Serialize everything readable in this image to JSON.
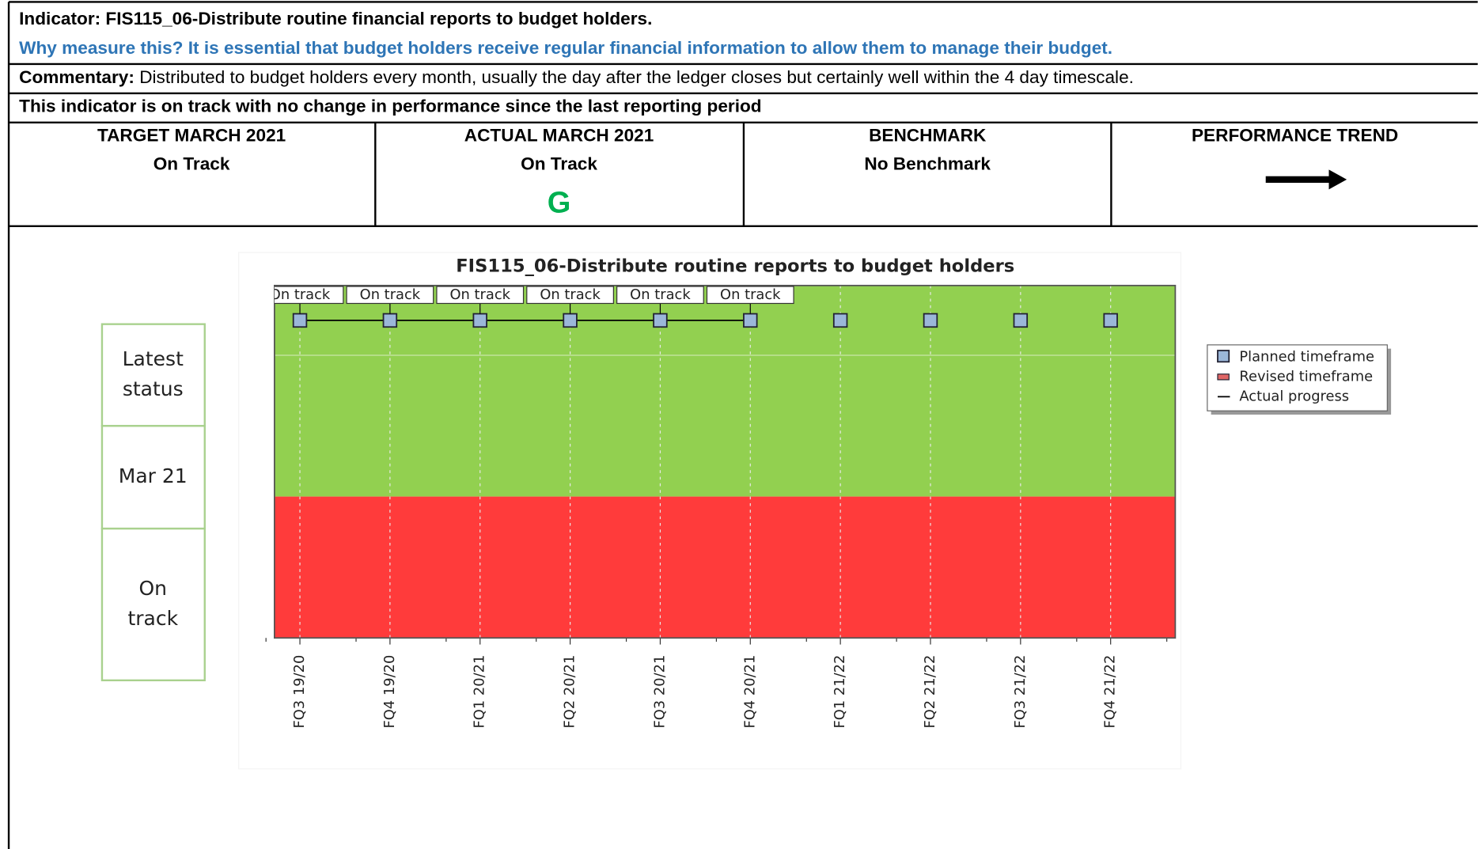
{
  "indicator": "Indicator: FIS115_06-Distribute routine financial reports to budget holders.",
  "why": "Why measure this? It is essential that budget holders receive regular financial information to allow them to manage their budget.",
  "commentary": {
    "label": "Commentary:",
    "text": "Distributed to budget holders every month, usually the day after the ledger closes but certainly well within the 4 day timescale."
  },
  "status_line": "This indicator is on track with no change in performance since the last reporting period",
  "table": {
    "headers": [
      "TARGET MARCH 2021",
      "ACTUAL MARCH 2021",
      "BENCHMARK",
      "PERFORMANCE TREND"
    ],
    "values": [
      "On Track",
      "On Track",
      "No Benchmark"
    ],
    "rag": "G"
  },
  "status_box": [
    [
      "Latest",
      "status"
    ],
    [
      "Mar 21"
    ],
    [
      "On",
      "track"
    ]
  ],
  "chart_data": {
    "type": "timeline",
    "title": "FIS115_06-Distribute routine reports to budget holders",
    "categories": [
      "FQ3 19/20",
      "FQ4 19/20",
      "FQ1 20/21",
      "FQ2 20/21",
      "FQ3 20/21",
      "FQ4 20/21",
      "FQ1 21/22",
      "FQ2 21/22",
      "FQ3 21/22",
      "FQ4 21/22"
    ],
    "progress_labels": [
      "On track",
      "On track",
      "On track",
      "On track",
      "On track",
      "On track"
    ],
    "legend": [
      "Planned timeframe",
      "Revised timeframe",
      "Actual progress"
    ],
    "colors": {
      "planned": "#9bb7d9",
      "revised": "#e06666",
      "on_track_band": "#92d050",
      "off_track_band": "#ff3b3b"
    }
  }
}
